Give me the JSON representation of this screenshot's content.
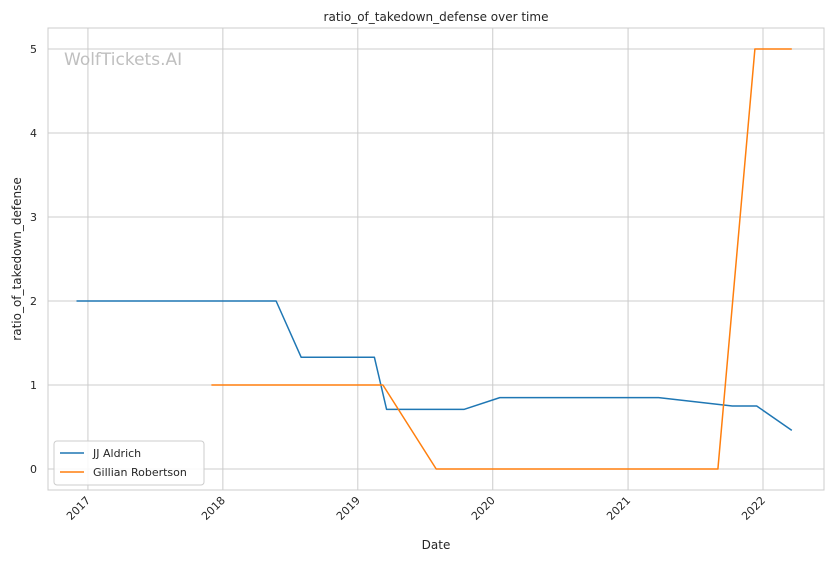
{
  "watermark": "WolfTickets.AI",
  "chart_data": {
    "type": "line",
    "title": "ratio_of_takedown_defense over time",
    "xlabel": "Date",
    "ylabel": "ratio_of_takedown_defense",
    "xlim": [
      "2016-09-15",
      "2022-06-15"
    ],
    "ylim": [
      -0.25,
      5.25
    ],
    "x_ticks": [
      "2017-01-01",
      "2018-01-01",
      "2019-01-01",
      "2020-01-01",
      "2021-01-01",
      "2022-01-01"
    ],
    "x_tick_labels": [
      "2017",
      "2018",
      "2019",
      "2020",
      "2021",
      "2022"
    ],
    "y_ticks": [
      0,
      1,
      2,
      3,
      4,
      5
    ],
    "grid": true,
    "legend_position": "lower-left",
    "series": [
      {
        "name": "JJ Aldrich",
        "color": "#1f77b4",
        "points": [
          [
            "2016-12-01",
            2.0
          ],
          [
            "2018-05-25",
            2.0
          ],
          [
            "2018-08-01",
            1.33
          ],
          [
            "2019-02-15",
            1.33
          ],
          [
            "2019-03-20",
            0.71
          ],
          [
            "2019-10-15",
            0.71
          ],
          [
            "2020-01-20",
            0.85
          ],
          [
            "2021-03-25",
            0.85
          ],
          [
            "2021-10-10",
            0.75
          ],
          [
            "2021-12-15",
            0.75
          ],
          [
            "2022-03-20",
            0.46
          ]
        ]
      },
      {
        "name": "Gillian Robertson",
        "color": "#ff7f0e",
        "points": [
          [
            "2017-12-01",
            1.0
          ],
          [
            "2019-03-10",
            1.0
          ],
          [
            "2019-08-01",
            0.0
          ],
          [
            "2021-09-01",
            0.0
          ],
          [
            "2021-12-10",
            5.0
          ],
          [
            "2022-03-20",
            5.0
          ]
        ]
      }
    ]
  }
}
